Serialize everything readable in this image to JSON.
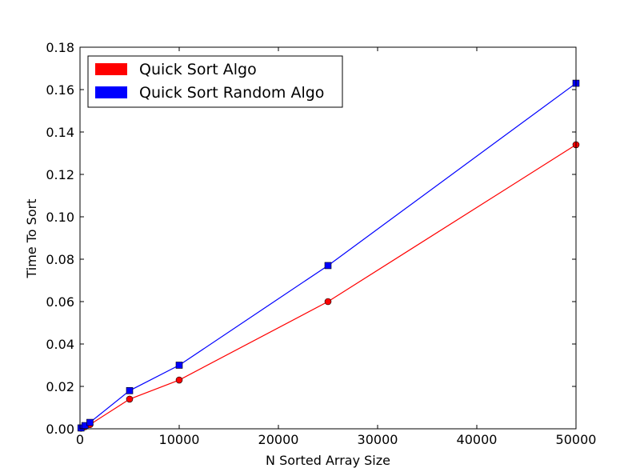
{
  "chart_data": {
    "type": "line",
    "title": "",
    "xlabel": "N Sorted Array Size",
    "ylabel": "Time To Sort",
    "xlim": [
      0,
      50000
    ],
    "ylim": [
      0,
      0.18
    ],
    "grid": false,
    "legend_position": "top-left",
    "x_ticks": [
      0,
      10000,
      20000,
      30000,
      40000,
      50000
    ],
    "x_tick_labels": [
      "0",
      "10000",
      "20000",
      "30000",
      "40000",
      "50000"
    ],
    "y_ticks": [
      0,
      0.02,
      0.04,
      0.06,
      0.08,
      0.1,
      0.12,
      0.14,
      0.16,
      0.18
    ],
    "y_tick_labels": [
      "0.00",
      "0.02",
      "0.04",
      "0.06",
      "0.08",
      "0.10",
      "0.12",
      "0.14",
      "0.16",
      "0.18"
    ],
    "series": [
      {
        "name": "Quick Sort Algo",
        "color": "#ff0000",
        "marker": "circle",
        "x": [
          100,
          500,
          1000,
          5000,
          10000,
          25000,
          50000
        ],
        "y": [
          0.0003,
          0.001,
          0.002,
          0.014,
          0.023,
          0.06,
          0.134
        ]
      },
      {
        "name": "Quick Sort Random Algo",
        "color": "#0000ff",
        "marker": "square",
        "x": [
          100,
          500,
          1000,
          5000,
          10000,
          25000,
          50000
        ],
        "y": [
          0.0004,
          0.0015,
          0.003,
          0.018,
          0.03,
          0.077,
          0.163
        ]
      }
    ]
  }
}
